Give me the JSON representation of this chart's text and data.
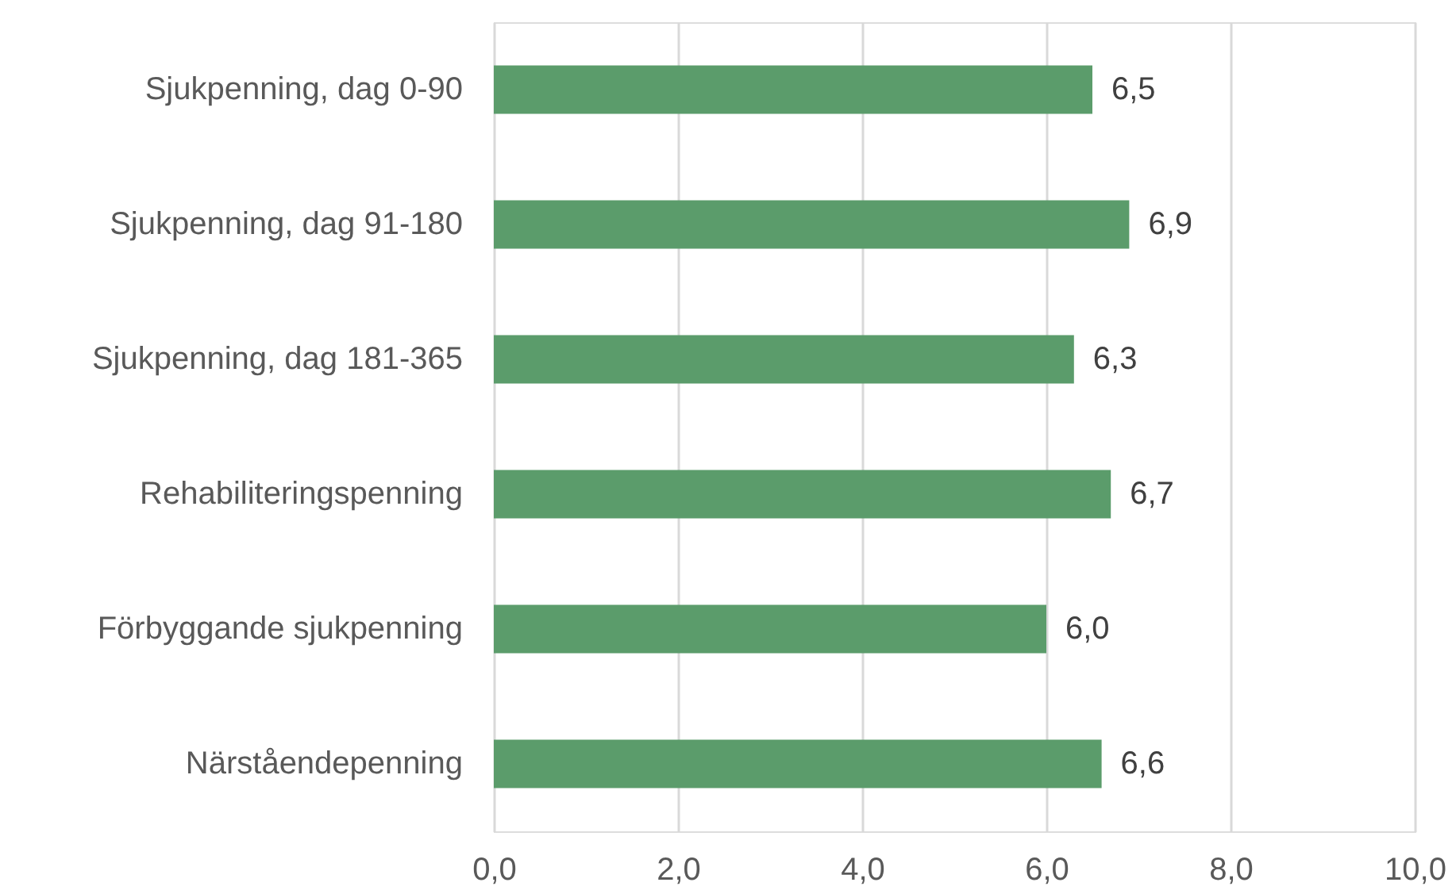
{
  "chart_data": {
    "type": "bar",
    "orientation": "horizontal",
    "categories": [
      "Sjukpenning, dag 0-90",
      "Sjukpenning, dag 91-180",
      "Sjukpenning, dag 181-365",
      "Rehabiliteringspenning",
      "Förbyggande sjukpenning",
      "Närståendepenning"
    ],
    "values": [
      6.5,
      6.9,
      6.3,
      6.7,
      6.0,
      6.6
    ],
    "value_labels": [
      "6,5",
      "6,9",
      "6,3",
      "6,7",
      "6,0",
      "6,6"
    ],
    "color": "#5b9c6b",
    "xlim": [
      0,
      10
    ],
    "xticks": [
      {
        "value": 0,
        "label": "0,0"
      },
      {
        "value": 2,
        "label": "2,0"
      },
      {
        "value": 4,
        "label": "4,0"
      },
      {
        "value": 6,
        "label": "6,0"
      },
      {
        "value": 8,
        "label": "8,0"
      },
      {
        "value": 10,
        "label": "10,0"
      }
    ],
    "grid": "x"
  }
}
